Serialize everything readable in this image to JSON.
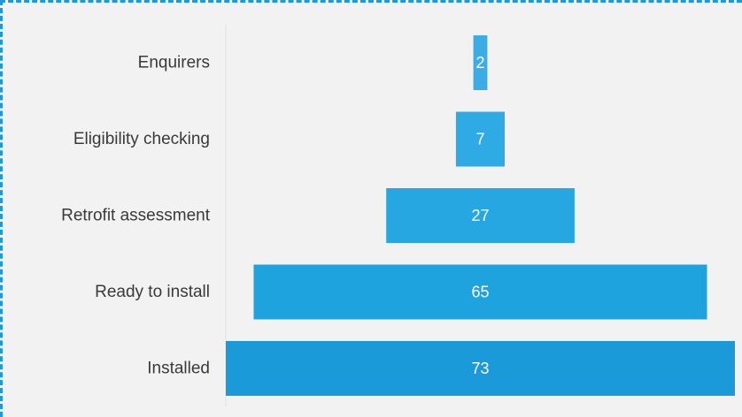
{
  "chart_data": {
    "type": "bar",
    "subtype": "funnel",
    "orientation": "horizontal",
    "categories": [
      "Enquirers",
      "Eligibility checking",
      "Retrofit assessment",
      "Ready to install",
      "Installed"
    ],
    "values": [
      2,
      7,
      27,
      65,
      73
    ],
    "data_labels": [
      "2",
      "7",
      "27",
      "65",
      "73"
    ],
    "grid": false,
    "legend": "none",
    "colors": [
      "#3aade6",
      "#2eabe4",
      "#27a7e2",
      "#1fa3de",
      "#1a9ad8"
    ]
  },
  "frame": {
    "border_color": "#1a9ad8",
    "background": "#f2f2f2"
  }
}
